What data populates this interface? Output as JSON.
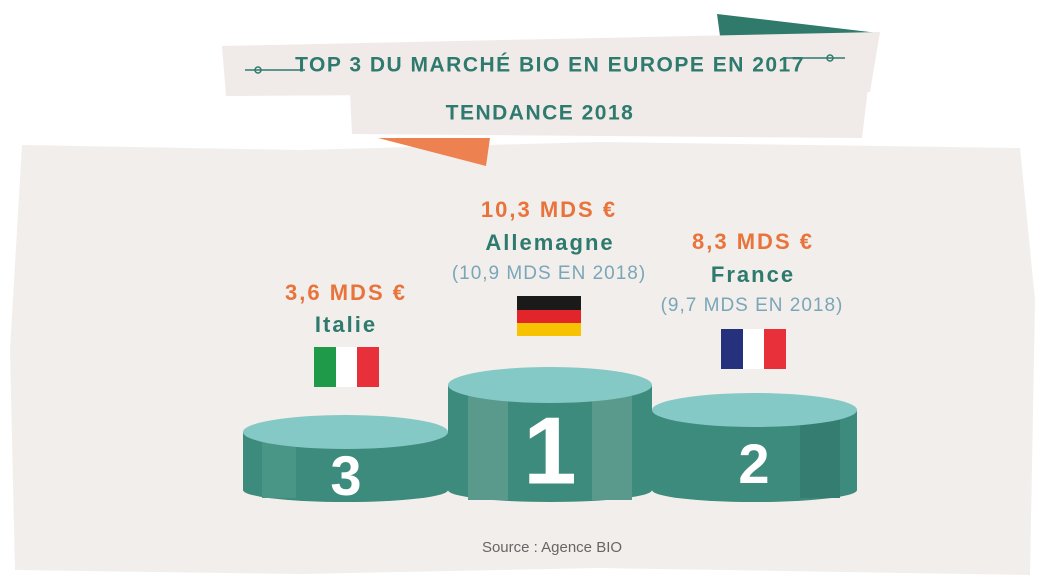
{
  "header": {
    "title": "TOP 3 DU MARCHÉ BIO EN EUROPE EN 2017",
    "subtitle": "TENDANCE 2018"
  },
  "podium": [
    {
      "rank": "1",
      "value": "10,3 MDS €",
      "country": "Allemagne",
      "note": "(10,9 MDS EN 2018)"
    },
    {
      "rank": "2",
      "value": "8,3 MDS €",
      "country": "France",
      "note": "(9,7 MDS EN 2018)"
    },
    {
      "rank": "3",
      "value": "3,6 MDS €",
      "country": "Italie"
    }
  ],
  "footer": {
    "source": "Source : Agence BIO"
  }
}
